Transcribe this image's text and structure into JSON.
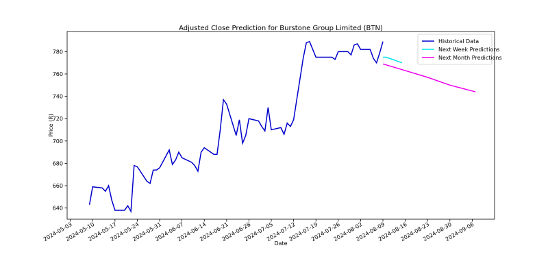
{
  "chart_data": {
    "type": "line",
    "title": "Adjusted Close Prediction for Burstone Group Limited (BTN)",
    "x_label": "Date",
    "y_label": "Price (R)",
    "xlim": [
      "2024-05-02",
      "2024-09-13"
    ],
    "xticks": [
      "2024-05-03",
      "2024-05-10",
      "2024-05-17",
      "2024-05-24",
      "2024-05-31",
      "2024-06-07",
      "2024-06-14",
      "2024-06-21",
      "2024-06-28",
      "2024-07-05",
      "2024-07-12",
      "2024-07-19",
      "2024-07-26",
      "2024-08-02",
      "2024-08-09",
      "2024-08-16",
      "2024-08-23",
      "2024-08-30",
      "2024-09-06"
    ],
    "ylim": [
      630,
      798
    ],
    "yticks": [
      640,
      660,
      680,
      700,
      720,
      740,
      760,
      780
    ],
    "legend": "upper right",
    "series": [
      {
        "name": "Historical Data",
        "color": "#0000cc",
        "x": [
          "2024-05-09",
          "2024-05-10",
          "2024-05-13",
          "2024-05-14",
          "2024-05-15",
          "2024-05-16",
          "2024-05-17",
          "2024-05-20",
          "2024-05-21",
          "2024-05-22",
          "2024-05-23",
          "2024-05-24",
          "2024-05-27",
          "2024-05-28",
          "2024-05-29",
          "2024-05-30",
          "2024-05-31",
          "2024-06-03",
          "2024-06-04",
          "2024-06-05",
          "2024-06-06",
          "2024-06-07",
          "2024-06-10",
          "2024-06-11",
          "2024-06-12",
          "2024-06-13",
          "2024-06-14",
          "2024-06-17",
          "2024-06-18",
          "2024-06-19",
          "2024-06-20",
          "2024-06-21",
          "2024-06-24",
          "2024-06-25",
          "2024-06-26",
          "2024-06-27",
          "2024-06-28",
          "2024-07-01",
          "2024-07-02",
          "2024-07-03",
          "2024-07-04",
          "2024-07-05",
          "2024-07-08",
          "2024-07-09",
          "2024-07-10",
          "2024-07-11",
          "2024-07-12",
          "2024-07-15",
          "2024-07-16",
          "2024-07-17",
          "2024-07-18",
          "2024-07-19",
          "2024-07-22",
          "2024-07-23",
          "2024-07-24",
          "2024-07-25",
          "2024-07-26",
          "2024-07-29",
          "2024-07-30",
          "2024-07-31",
          "2024-08-01",
          "2024-08-02",
          "2024-08-05",
          "2024-08-06",
          "2024-08-07",
          "2024-08-08",
          "2024-08-09"
        ],
        "values": [
          643,
          659,
          658,
          655,
          660,
          647,
          638,
          638,
          642,
          637,
          678,
          677,
          664,
          662,
          674,
          674,
          676,
          692,
          679,
          683,
          690,
          685,
          681,
          678,
          673,
          690,
          694,
          688,
          688,
          710,
          737,
          733,
          705,
          719,
          698,
          705,
          720,
          718,
          713,
          709,
          730,
          710,
          712,
          706,
          716,
          713,
          719,
          774,
          788,
          789,
          782,
          775,
          775,
          775,
          775,
          773,
          780,
          780,
          777,
          786,
          787,
          782,
          782,
          774,
          770,
          779,
          789
        ]
      },
      {
        "name": "Next Week Predictions",
        "color": "#00e5ee",
        "x": [
          "2024-08-09",
          "2024-08-10",
          "2024-08-11",
          "2024-08-12",
          "2024-08-13",
          "2024-08-14",
          "2024-08-15"
        ],
        "values": [
          775,
          775,
          774,
          773,
          772,
          771,
          770
        ]
      },
      {
        "name": "Next Month Predictions",
        "color": "#ee00ee",
        "x": [
          "2024-08-09",
          "2024-08-16",
          "2024-08-23",
          "2024-08-30",
          "2024-09-07"
        ],
        "values": [
          769,
          763,
          757,
          750,
          744
        ]
      }
    ]
  }
}
